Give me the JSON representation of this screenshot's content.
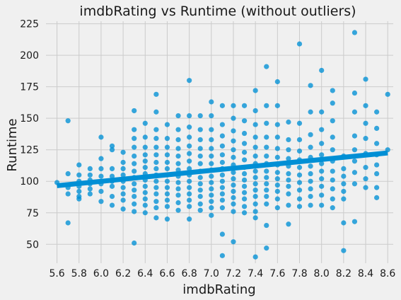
{
  "chart_data": {
    "type": "scatter",
    "title": "imdbRating vs Runtime (without outliers)",
    "xlabel": "imdbRating",
    "ylabel": "Runtime",
    "xlim": [
      5.5,
      8.65
    ],
    "ylim": [
      35,
      227
    ],
    "xticks": [
      "5.6",
      "5.8",
      "6.0",
      "6.2",
      "6.4",
      "6.6",
      "6.8",
      "7.0",
      "7.2",
      "7.4",
      "7.6",
      "7.8",
      "8.0",
      "8.2",
      "8.4",
      "8.6"
    ],
    "yticks": [
      "50",
      "75",
      "100",
      "125",
      "150",
      "175",
      "200",
      "225"
    ],
    "grid": true,
    "point_color": "#008fd5",
    "regression_line": {
      "x": [
        5.6,
        8.6
      ],
      "y": [
        96.5,
        122.5
      ],
      "color": "#008fd5"
    },
    "series": [
      {
        "points": [
          [
            5.6,
            99
          ],
          [
            5.7,
            148
          ],
          [
            5.7,
            67
          ],
          [
            5.7,
            106
          ],
          [
            5.7,
            95
          ],
          [
            5.7,
            90
          ],
          [
            5.8,
            113
          ],
          [
            5.8,
            105
          ],
          [
            5.8,
            100
          ],
          [
            5.8,
            96
          ],
          [
            5.8,
            92
          ],
          [
            5.8,
            88
          ],
          [
            5.8,
            86
          ],
          [
            5.9,
            110
          ],
          [
            5.9,
            105
          ],
          [
            5.9,
            101
          ],
          [
            5.9,
            98
          ],
          [
            5.9,
            94
          ],
          [
            5.9,
            90
          ],
          [
            6.0,
            135
          ],
          [
            6.0,
            118
          ],
          [
            6.0,
            110
          ],
          [
            6.0,
            104
          ],
          [
            6.0,
            98
          ],
          [
            6.0,
            92
          ],
          [
            6.0,
            84
          ],
          [
            6.1,
            128
          ],
          [
            6.1,
            125
          ],
          [
            6.1,
            110
          ],
          [
            6.1,
            104
          ],
          [
            6.1,
            100
          ],
          [
            6.1,
            96
          ],
          [
            6.1,
            88
          ],
          [
            6.1,
            81
          ],
          [
            6.2,
            123
          ],
          [
            6.2,
            115
          ],
          [
            6.2,
            110
          ],
          [
            6.2,
            105
          ],
          [
            6.2,
            100
          ],
          [
            6.2,
            95
          ],
          [
            6.2,
            90
          ],
          [
            6.2,
            85
          ],
          [
            6.2,
            78
          ],
          [
            6.3,
            156
          ],
          [
            6.3,
            141
          ],
          [
            6.3,
            134
          ],
          [
            6.3,
            127
          ],
          [
            6.3,
            120
          ],
          [
            6.3,
            114
          ],
          [
            6.3,
            108
          ],
          [
            6.3,
            103
          ],
          [
            6.3,
            98
          ],
          [
            6.3,
            93
          ],
          [
            6.3,
            88
          ],
          [
            6.3,
            82
          ],
          [
            6.3,
            76
          ],
          [
            6.3,
            51
          ],
          [
            6.4,
            146
          ],
          [
            6.4,
            135
          ],
          [
            6.4,
            127
          ],
          [
            6.4,
            121
          ],
          [
            6.4,
            116
          ],
          [
            6.4,
            111
          ],
          [
            6.4,
            106
          ],
          [
            6.4,
            101
          ],
          [
            6.4,
            96
          ],
          [
            6.4,
            91
          ],
          [
            6.4,
            86
          ],
          [
            6.4,
            81
          ],
          [
            6.4,
            75
          ],
          [
            6.5,
            169
          ],
          [
            6.5,
            155
          ],
          [
            6.5,
            141
          ],
          [
            6.5,
            134
          ],
          [
            6.5,
            127
          ],
          [
            6.5,
            121
          ],
          [
            6.5,
            115
          ],
          [
            6.5,
            110
          ],
          [
            6.5,
            105
          ],
          [
            6.5,
            100
          ],
          [
            6.5,
            95
          ],
          [
            6.5,
            90
          ],
          [
            6.5,
            84
          ],
          [
            6.5,
            79
          ],
          [
            6.5,
            71
          ],
          [
            6.6,
            145
          ],
          [
            6.6,
            134
          ],
          [
            6.6,
            127
          ],
          [
            6.6,
            121
          ],
          [
            6.6,
            115
          ],
          [
            6.6,
            110
          ],
          [
            6.6,
            105
          ],
          [
            6.6,
            100
          ],
          [
            6.6,
            95
          ],
          [
            6.6,
            90
          ],
          [
            6.6,
            85
          ],
          [
            6.6,
            80
          ],
          [
            6.6,
            70
          ],
          [
            6.7,
            152
          ],
          [
            6.7,
            141
          ],
          [
            6.7,
            133
          ],
          [
            6.7,
            126
          ],
          [
            6.7,
            120
          ],
          [
            6.7,
            114
          ],
          [
            6.7,
            109
          ],
          [
            6.7,
            104
          ],
          [
            6.7,
            99
          ],
          [
            6.7,
            94
          ],
          [
            6.7,
            89
          ],
          [
            6.7,
            83
          ],
          [
            6.7,
            77
          ],
          [
            6.8,
            180
          ],
          [
            6.8,
            152
          ],
          [
            6.8,
            143
          ],
          [
            6.8,
            135
          ],
          [
            6.8,
            128
          ],
          [
            6.8,
            122
          ],
          [
            6.8,
            116
          ],
          [
            6.8,
            110
          ],
          [
            6.8,
            105
          ],
          [
            6.8,
            100
          ],
          [
            6.8,
            95
          ],
          [
            6.8,
            90
          ],
          [
            6.8,
            85
          ],
          [
            6.8,
            80
          ],
          [
            6.8,
            70
          ],
          [
            6.9,
            152
          ],
          [
            6.9,
            141
          ],
          [
            6.9,
            133
          ],
          [
            6.9,
            126
          ],
          [
            6.9,
            120
          ],
          [
            6.9,
            114
          ],
          [
            6.9,
            108
          ],
          [
            6.9,
            103
          ],
          [
            6.9,
            98
          ],
          [
            6.9,
            93
          ],
          [
            6.9,
            88
          ],
          [
            6.9,
            82
          ],
          [
            6.9,
            77
          ],
          [
            7.0,
            163
          ],
          [
            7.0,
            152
          ],
          [
            7.0,
            141
          ],
          [
            7.0,
            133
          ],
          [
            7.0,
            126
          ],
          [
            7.0,
            120
          ],
          [
            7.0,
            114
          ],
          [
            7.0,
            109
          ],
          [
            7.0,
            104
          ],
          [
            7.0,
            99
          ],
          [
            7.0,
            94
          ],
          [
            7.0,
            89
          ],
          [
            7.0,
            84
          ],
          [
            7.0,
            79
          ],
          [
            7.0,
            73
          ],
          [
            7.1,
            160
          ],
          [
            7.1,
            145
          ],
          [
            7.1,
            136
          ],
          [
            7.1,
            128
          ],
          [
            7.1,
            121
          ],
          [
            7.1,
            115
          ],
          [
            7.1,
            110
          ],
          [
            7.1,
            105
          ],
          [
            7.1,
            100
          ],
          [
            7.1,
            95
          ],
          [
            7.1,
            90
          ],
          [
            7.1,
            85
          ],
          [
            7.1,
            79
          ],
          [
            7.1,
            58
          ],
          [
            7.1,
            41
          ],
          [
            7.2,
            160
          ],
          [
            7.2,
            150
          ],
          [
            7.2,
            140
          ],
          [
            7.2,
            132
          ],
          [
            7.2,
            125
          ],
          [
            7.2,
            119
          ],
          [
            7.2,
            113
          ],
          [
            7.2,
            107
          ],
          [
            7.2,
            102
          ],
          [
            7.2,
            97
          ],
          [
            7.2,
            92
          ],
          [
            7.2,
            87
          ],
          [
            7.2,
            82
          ],
          [
            7.2,
            76
          ],
          [
            7.2,
            52
          ],
          [
            7.3,
            160
          ],
          [
            7.3,
            148
          ],
          [
            7.3,
            138
          ],
          [
            7.3,
            130
          ],
          [
            7.3,
            123
          ],
          [
            7.3,
            117
          ],
          [
            7.3,
            111
          ],
          [
            7.3,
            106
          ],
          [
            7.3,
            101
          ],
          [
            7.3,
            96
          ],
          [
            7.3,
            91
          ],
          [
            7.3,
            86
          ],
          [
            7.3,
            80
          ],
          [
            7.3,
            75
          ],
          [
            7.4,
            172
          ],
          [
            7.4,
            156
          ],
          [
            7.4,
            145
          ],
          [
            7.4,
            135
          ],
          [
            7.4,
            127
          ],
          [
            7.4,
            120
          ],
          [
            7.4,
            114
          ],
          [
            7.4,
            108
          ],
          [
            7.4,
            103
          ],
          [
            7.4,
            98
          ],
          [
            7.4,
            93
          ],
          [
            7.4,
            88
          ],
          [
            7.4,
            82
          ],
          [
            7.4,
            76
          ],
          [
            7.4,
            71
          ],
          [
            7.4,
            40
          ],
          [
            7.5,
            191
          ],
          [
            7.5,
            160
          ],
          [
            7.5,
            146
          ],
          [
            7.5,
            135
          ],
          [
            7.5,
            127
          ],
          [
            7.5,
            120
          ],
          [
            7.5,
            114
          ],
          [
            7.5,
            108
          ],
          [
            7.5,
            103
          ],
          [
            7.5,
            98
          ],
          [
            7.5,
            93
          ],
          [
            7.5,
            88
          ],
          [
            7.5,
            82
          ],
          [
            7.5,
            65
          ],
          [
            7.5,
            47
          ],
          [
            7.6,
            179
          ],
          [
            7.6,
            160
          ],
          [
            7.6,
            145
          ],
          [
            7.6,
            135
          ],
          [
            7.6,
            126
          ],
          [
            7.6,
            119
          ],
          [
            7.6,
            113
          ],
          [
            7.6,
            107
          ],
          [
            7.6,
            102
          ],
          [
            7.6,
            97
          ],
          [
            7.6,
            92
          ],
          [
            7.6,
            86
          ],
          [
            7.6,
            79
          ],
          [
            7.7,
            147
          ],
          [
            7.7,
            133
          ],
          [
            7.7,
            125
          ],
          [
            7.7,
            118
          ],
          [
            7.7,
            112
          ],
          [
            7.7,
            106
          ],
          [
            7.7,
            101
          ],
          [
            7.7,
            96
          ],
          [
            7.7,
            90
          ],
          [
            7.7,
            81
          ],
          [
            7.7,
            66
          ],
          [
            7.8,
            209
          ],
          [
            7.8,
            146
          ],
          [
            7.8,
            133
          ],
          [
            7.8,
            124
          ],
          [
            7.8,
            117
          ],
          [
            7.8,
            111
          ],
          [
            7.8,
            105
          ],
          [
            7.8,
            99
          ],
          [
            7.8,
            93
          ],
          [
            7.8,
            86
          ],
          [
            7.8,
            80
          ],
          [
            7.9,
            176
          ],
          [
            7.9,
            155
          ],
          [
            7.9,
            137
          ],
          [
            7.9,
            127
          ],
          [
            7.9,
            119
          ],
          [
            7.9,
            112
          ],
          [
            7.9,
            106
          ],
          [
            7.9,
            100
          ],
          [
            7.9,
            94
          ],
          [
            7.9,
            88
          ],
          [
            7.9,
            81
          ],
          [
            8.0,
            188
          ],
          [
            8.0,
            155
          ],
          [
            8.0,
            141
          ],
          [
            8.0,
            130
          ],
          [
            8.0,
            121
          ],
          [
            8.0,
            114
          ],
          [
            8.0,
            108
          ],
          [
            8.0,
            102
          ],
          [
            8.0,
            96
          ],
          [
            8.0,
            89
          ],
          [
            8.0,
            81
          ],
          [
            8.1,
            172
          ],
          [
            8.1,
            162
          ],
          [
            8.1,
            148
          ],
          [
            8.1,
            135
          ],
          [
            8.1,
            125
          ],
          [
            8.1,
            116
          ],
          [
            8.1,
            108
          ],
          [
            8.1,
            101
          ],
          [
            8.1,
            94
          ],
          [
            8.1,
            86
          ],
          [
            8.1,
            79
          ],
          [
            8.2,
            120
          ],
          [
            8.2,
            110
          ],
          [
            8.2,
            104
          ],
          [
            8.2,
            98
          ],
          [
            8.2,
            92
          ],
          [
            8.2,
            86
          ],
          [
            8.2,
            67
          ],
          [
            8.2,
            45
          ],
          [
            8.3,
            218
          ],
          [
            8.3,
            170
          ],
          [
            8.3,
            155
          ],
          [
            8.3,
            136
          ],
          [
            8.3,
            125
          ],
          [
            8.3,
            116
          ],
          [
            8.3,
            107
          ],
          [
            8.3,
            98
          ],
          [
            8.3,
            68
          ],
          [
            8.4,
            181
          ],
          [
            8.4,
            160
          ],
          [
            8.4,
            146
          ],
          [
            8.4,
            134
          ],
          [
            8.4,
            122
          ],
          [
            8.4,
            111
          ],
          [
            8.4,
            102
          ],
          [
            8.4,
            95
          ],
          [
            8.5,
            155
          ],
          [
            8.5,
            142
          ],
          [
            8.5,
            130
          ],
          [
            8.5,
            121
          ],
          [
            8.5,
            113
          ],
          [
            8.5,
            106
          ],
          [
            8.5,
            95
          ],
          [
            8.5,
            87
          ],
          [
            8.6,
            169
          ],
          [
            8.6,
            125
          ]
        ]
      }
    ]
  }
}
